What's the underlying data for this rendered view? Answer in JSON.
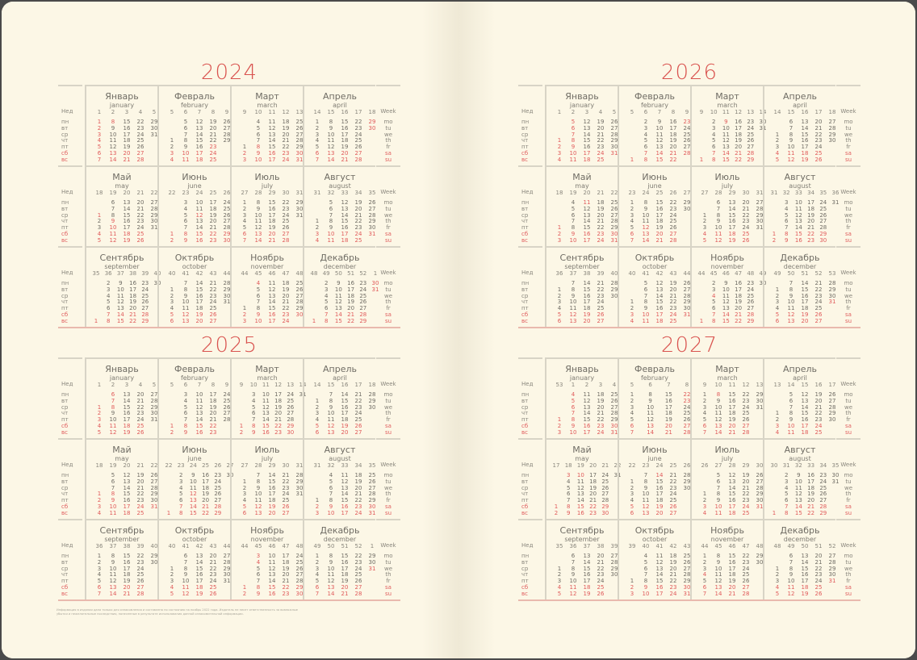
{
  "spread": [
    {
      "page": "left",
      "years": [
        {
          "year": "2024",
          "holidays": [
            "1-1",
            "1-2",
            "1-3",
            "1-4",
            "1-5",
            "1-6",
            "1-7",
            "1-8",
            "2-23",
            "3-8",
            "4-29",
            "4-30",
            "5-1",
            "5-9",
            "5-10",
            "6-12",
            "11-4",
            "12-30",
            "12-31"
          ]
        },
        {
          "year": "2025",
          "holidays": [
            "1-1",
            "1-2",
            "1-3",
            "1-4",
            "1-5",
            "1-6",
            "1-7",
            "1-8",
            "3-8",
            "5-1",
            "5-2",
            "5-8",
            "5-9",
            "6-12",
            "6-13",
            "11-3",
            "11-4",
            "12-31"
          ]
        }
      ]
    },
    {
      "page": "right",
      "years": [
        {
          "year": "2026",
          "holidays": [
            "1-1",
            "1-2",
            "1-3",
            "1-4",
            "1-5",
            "1-6",
            "1-7",
            "1-8",
            "1-9",
            "2-23",
            "3-9",
            "5-1",
            "5-11",
            "6-12",
            "11-4",
            "12-31"
          ]
        },
        {
          "year": "2027",
          "holidays": [
            "1-1",
            "1-2",
            "1-3",
            "1-4",
            "1-5",
            "1-6",
            "1-7",
            "1-8",
            "2-22",
            "2-23",
            "3-8",
            "5-3",
            "5-10",
            "6-14",
            "11-4",
            "12-31"
          ]
        }
      ]
    }
  ],
  "months": [
    {
      "ru": "Январь",
      "en": "january"
    },
    {
      "ru": "Февраль",
      "en": "february"
    },
    {
      "ru": "Март",
      "en": "march"
    },
    {
      "ru": "Апрель",
      "en": "april"
    },
    {
      "ru": "Май",
      "en": "may"
    },
    {
      "ru": "Июнь",
      "en": "june"
    },
    {
      "ru": "Июль",
      "en": "july"
    },
    {
      "ru": "Август",
      "en": "august"
    },
    {
      "ru": "Сентябрь",
      "en": "september"
    },
    {
      "ru": "Октябрь",
      "en": "october"
    },
    {
      "ru": "Ноябрь",
      "en": "november"
    },
    {
      "ru": "Декабрь",
      "en": "december"
    }
  ],
  "week_header_ru": "Нед",
  "week_header_en": "Week",
  "weekdays_ru": [
    "пн",
    "вт",
    "ср",
    "чт",
    "пт",
    "сб",
    "вс"
  ],
  "weekdays_en": [
    "mo",
    "tu",
    "we",
    "th",
    "fr",
    "sa",
    "su"
  ],
  "colors": {
    "accent": "#d9534f",
    "holiday": "#e05a5a",
    "text": "#6f6c64",
    "rule": "#d8d4c6"
  },
  "footer": "Информация в издании дана только для ознакомления и составлена по состоянию на ноябрь 2022 года. Издатель не несет ответственность за возможные убытки и нежелательные последствия, понесенные в результате использования данной ознакомительной информации."
}
